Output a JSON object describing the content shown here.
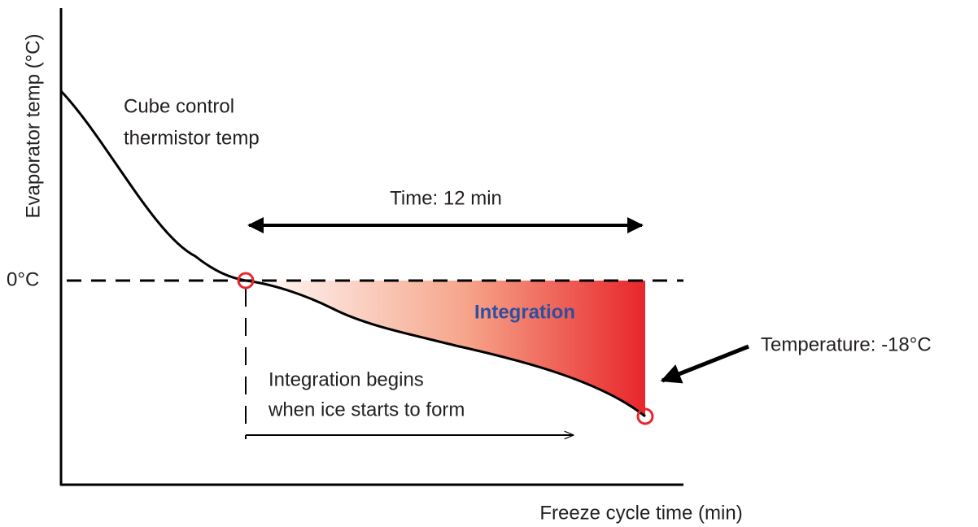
{
  "y_axis_label": "Evaporator temp (°C)",
  "x_axis_label": "Freeze cycle time (min)",
  "zero_label": "0°C",
  "curve_label": [
    "Cube control",
    "thermistor temp"
  ],
  "time_label": "Time: 12 min",
  "area_label": "Integration",
  "temperature_label": "Temperature: -18°C",
  "begin_label": [
    "Integration begins",
    "when ice starts to form"
  ]
}
